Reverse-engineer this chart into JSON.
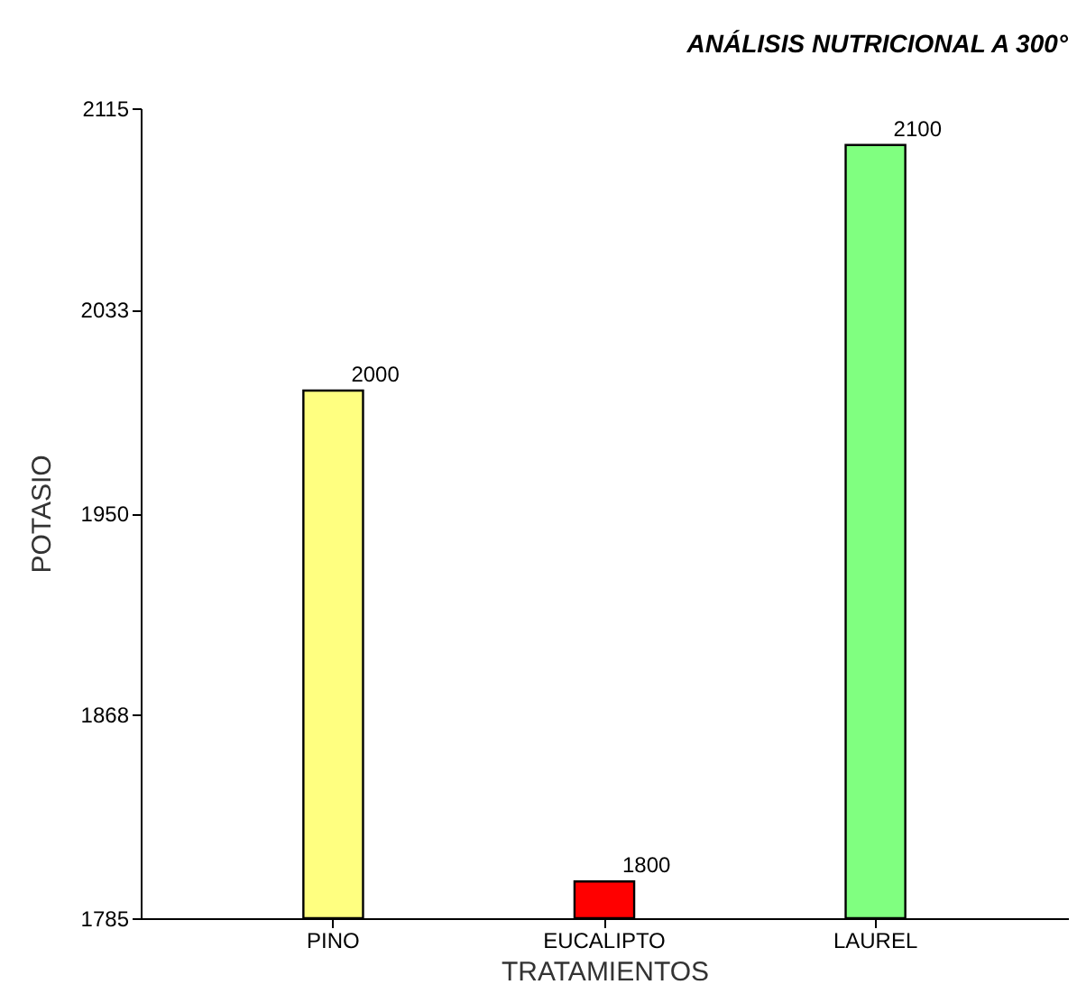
{
  "chart_data": {
    "type": "bar",
    "title": "ANÁLISIS NUTRICIONAL A 300°",
    "xlabel": "TRATAMIENTOS",
    "ylabel": "POTASIO",
    "categories": [
      "PINO",
      "EUCALIPTO",
      "LAUREL"
    ],
    "values": [
      2000,
      1800,
      2100
    ],
    "colors": [
      "#ffff80",
      "#ff0000",
      "#80ff80"
    ],
    "ylim": [
      1785,
      2115
    ],
    "yticks": [
      1785,
      1868,
      1950,
      2033,
      2115
    ],
    "data_labels": true,
    "grid": false,
    "legend": false
  }
}
